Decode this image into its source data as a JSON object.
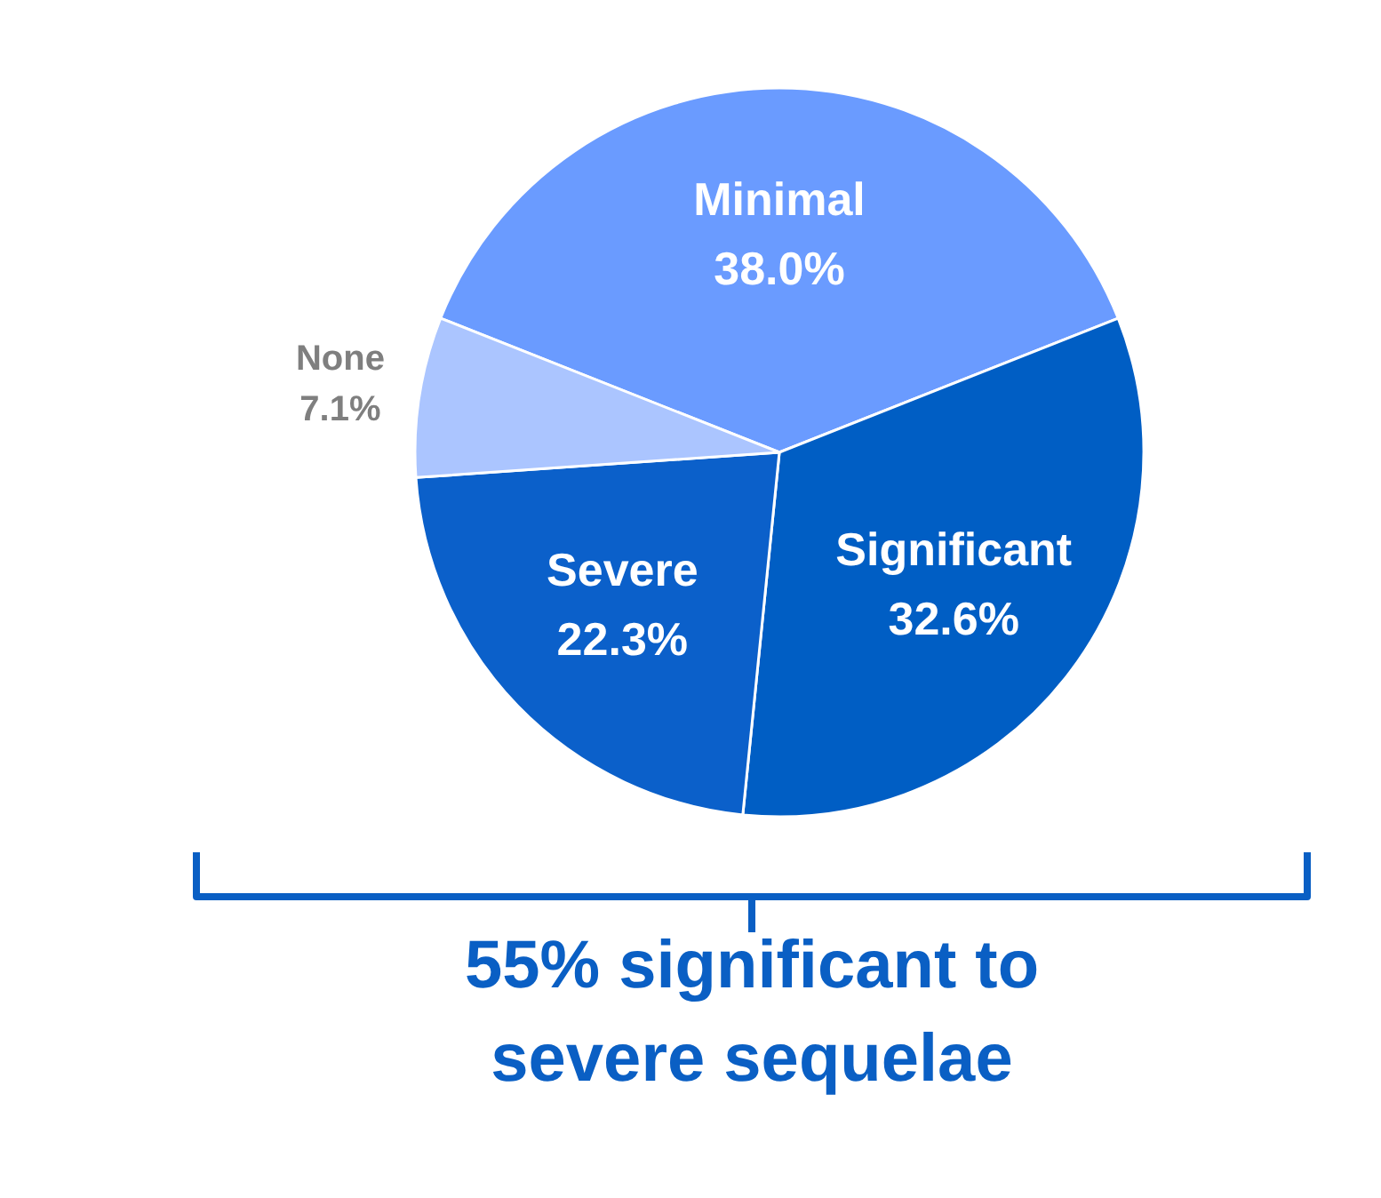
{
  "chart_data": {
    "type": "pie",
    "categories": [
      "Minimal",
      "Significant",
      "Severe",
      "None"
    ],
    "values": [
      38.0,
      32.6,
      22.3,
      7.1
    ],
    "colors": [
      "#6a9bff",
      "#005ec4",
      "#0b60ca",
      "#abc5ff"
    ],
    "value_labels": [
      "38.0%",
      "32.6%",
      "22.3%",
      "7.1%"
    ],
    "annotations": [
      "55% significant to severe sequelae"
    ]
  }
}
